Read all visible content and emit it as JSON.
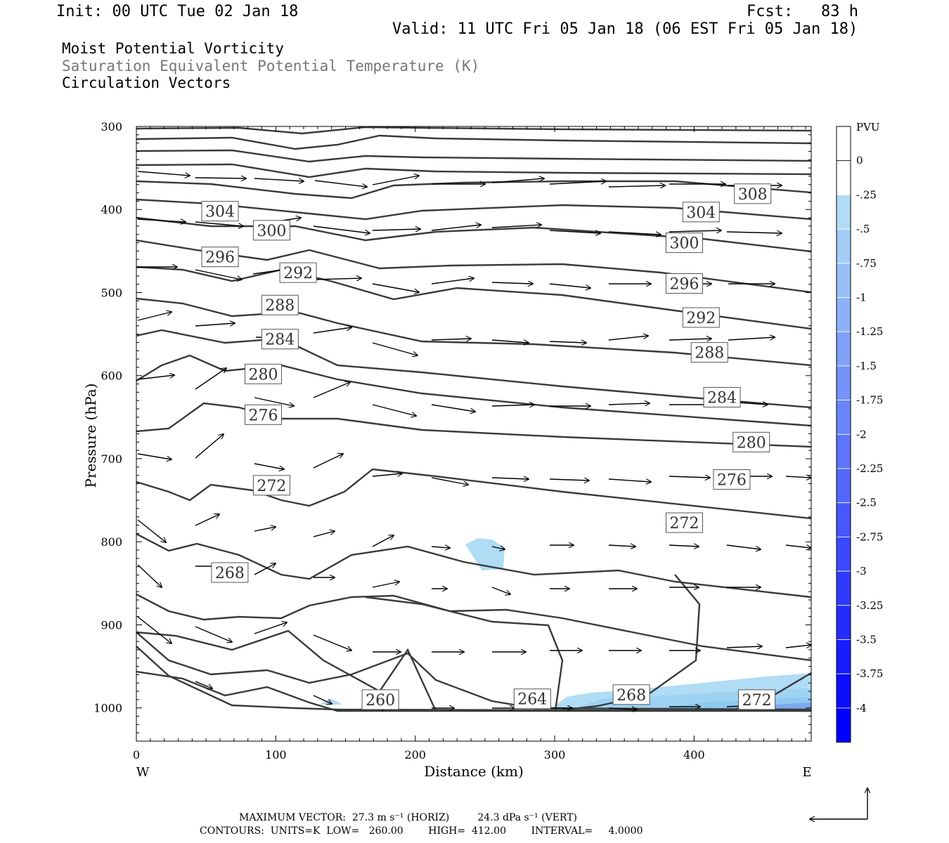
{
  "header": {
    "init": "Init: 00 UTC Tue 02 Jan 18",
    "fcst": "Fcst:   83 h",
    "valid": "Valid: 11 UTC Fri 05 Jan 18 (06 EST Fri 05 Jan 18)"
  },
  "fields": {
    "line1": "Moist Potential Vorticity",
    "line2": "Saturation Equivalent Potential Temperature (K)",
    "line3": "Circulation Vectors"
  },
  "chart_data": {
    "type": "cross-section",
    "xlabel": "Distance (km)",
    "ylabel": "Pressure (hPa)",
    "x_ticks": [
      0,
      100,
      200,
      300,
      400
    ],
    "y_ticks": [
      300,
      400,
      500,
      600,
      700,
      800,
      900,
      1000
    ],
    "xlim": [
      0,
      484
    ],
    "ylim": [
      1040,
      300
    ],
    "west_label": "W",
    "east_label": "E",
    "contour_labels": [
      {
        "value": "308",
        "x": 442,
        "p": 381
      },
      {
        "value": "304",
        "x": 60,
        "p": 402
      },
      {
        "value": "304",
        "x": 405,
        "p": 403
      },
      {
        "value": "300",
        "x": 97,
        "p": 425
      },
      {
        "value": "300",
        "x": 393,
        "p": 440
      },
      {
        "value": "296",
        "x": 60,
        "p": 457
      },
      {
        "value": "296",
        "x": 393,
        "p": 489
      },
      {
        "value": "292",
        "x": 116,
        "p": 476
      },
      {
        "value": "292",
        "x": 405,
        "p": 530
      },
      {
        "value": "288",
        "x": 103,
        "p": 515
      },
      {
        "value": "288",
        "x": 411,
        "p": 572
      },
      {
        "value": "284",
        "x": 103,
        "p": 556
      },
      {
        "value": "284",
        "x": 420,
        "p": 626
      },
      {
        "value": "280",
        "x": 91,
        "p": 598
      },
      {
        "value": "280",
        "x": 441,
        "p": 680
      },
      {
        "value": "276",
        "x": 91,
        "p": 647
      },
      {
        "value": "276",
        "x": 427,
        "p": 725
      },
      {
        "value": "272",
        "x": 97,
        "p": 732
      },
      {
        "value": "272",
        "x": 393,
        "p": 777
      },
      {
        "value": "268",
        "x": 67,
        "p": 837
      },
      {
        "value": "268",
        "x": 355,
        "p": 984
      },
      {
        "value": "260",
        "x": 175,
        "p": 990
      },
      {
        "value": "264",
        "x": 284,
        "p": 989
      },
      {
        "value": "272",
        "x": 445,
        "p": 990
      }
    ],
    "colorbar": {
      "unit": "PVU",
      "labels": [
        "0",
        "-.25",
        "-.5",
        "-.75",
        "-1",
        "-1.25",
        "-1.5",
        "-1.75",
        "-2",
        "-2.25",
        "-2.5",
        "-2.75",
        "-3",
        "-3.25",
        "-3.5",
        "-3.75",
        "-4"
      ]
    }
  },
  "footer": {
    "line1": "MAXIMUM VECTOR:  27.3 m s⁻¹ (HORIZ)         24.3 dPa s⁻¹ (VERT)",
    "line2": "CONTOURS:  UNITS=K  LOW=   260.00        HIGH=  412.00        INTERVAL=     4.0000"
  }
}
